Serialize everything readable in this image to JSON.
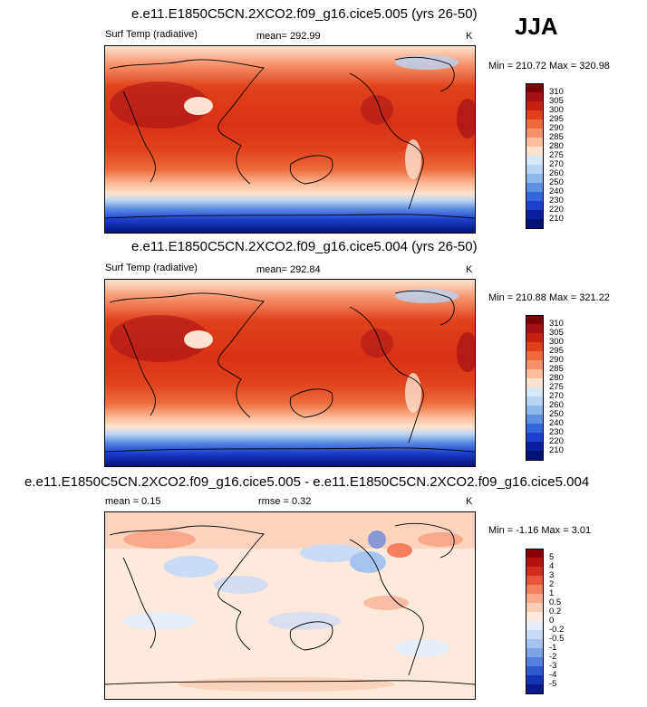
{
  "season_label": "JJA",
  "panels": [
    {
      "title": "e.e11.E1850C5CN.2XCO2.f09_g16.cice5.005 (yrs 26-50)",
      "variable_label": "Surf Temp (radiative)",
      "stat_text": "mean= 292.99",
      "units": "K",
      "minmax_text": "Min = 210.72 Max = 320.98",
      "colorbar": {
        "labels": [
          "310",
          "305",
          "300",
          "295",
          "290",
          "285",
          "280",
          "275",
          "270",
          "260",
          "250",
          "240",
          "230",
          "220",
          "210"
        ],
        "colors": [
          "#7a0403",
          "#a50f15",
          "#c8200e",
          "#e0401a",
          "#ee6a3a",
          "#f6926a",
          "#fbbd9a",
          "#fde3d0",
          "#d8e8f8",
          "#b8d3f2",
          "#8eb7ec",
          "#5f91e3",
          "#3366dc",
          "#1a3fcc",
          "#0a1f9e",
          "#031278"
        ]
      }
    },
    {
      "title": "e.e11.E1850C5CN.2XCO2.f09_g16.cice5.004 (yrs 26-50)",
      "variable_label": "Surf Temp (radiative)",
      "stat_text": "mean= 292.84",
      "units": "K",
      "minmax_text": "Min = 210.88 Max = 321.22",
      "colorbar": {
        "labels": [
          "310",
          "305",
          "300",
          "295",
          "290",
          "285",
          "280",
          "275",
          "270",
          "260",
          "250",
          "240",
          "230",
          "220",
          "210"
        ],
        "colors": [
          "#7a0403",
          "#a50f15",
          "#c8200e",
          "#e0401a",
          "#ee6a3a",
          "#f6926a",
          "#fbbd9a",
          "#fde3d0",
          "#d8e8f8",
          "#b8d3f2",
          "#8eb7ec",
          "#5f91e3",
          "#3366dc",
          "#1a3fcc",
          "#0a1f9e",
          "#031278"
        ]
      }
    },
    {
      "title": "e.e11.E1850C5CN.2XCO2.f09_g16.cice5.005 - e.e11.E1850C5CN.2XCO2.f09_g16.cice5.004",
      "stat_text": "mean =   0.15",
      "rmse_text": "rmse =   0.32",
      "units": "K",
      "minmax_text": "Min =  -1.16 Max =   3.01",
      "colorbar": {
        "labels": [
          "5",
          "4",
          "3",
          "2",
          "1",
          "0.5",
          "0.2",
          "0",
          "-0.2",
          "-0.5",
          "-1",
          "-2",
          "-3",
          "-4",
          "-5"
        ],
        "colors": [
          "#8a0000",
          "#b2140d",
          "#d22d1d",
          "#e8553a",
          "#f4805e",
          "#f8a98a",
          "#fbcdb4",
          "#fdeadc",
          "#e6eefa",
          "#c9daf5",
          "#a6c2ef",
          "#7ea4e8",
          "#5580dd",
          "#2f5acf",
          "#1533b5",
          "#0a1a8a"
        ]
      }
    }
  ],
  "chart_data": [
    {
      "type": "heatmap",
      "title": "e.e11.E1850C5CN.2XCO2.f09_g16.cice5.005 (yrs 26-50)",
      "subtitle": "Surf Temp (radiative)",
      "season": "JJA",
      "units": "K",
      "mean": 292.99,
      "min": 210.72,
      "max": 320.98,
      "color_levels": [
        210,
        220,
        230,
        240,
        250,
        260,
        270,
        275,
        280,
        285,
        290,
        295,
        300,
        305,
        310
      ],
      "legend": "right"
    },
    {
      "type": "heatmap",
      "title": "e.e11.E1850C5CN.2XCO2.f09_g16.cice5.004 (yrs 26-50)",
      "subtitle": "Surf Temp (radiative)",
      "season": "JJA",
      "units": "K",
      "mean": 292.84,
      "min": 210.88,
      "max": 321.22,
      "color_levels": [
        210,
        220,
        230,
        240,
        250,
        260,
        270,
        275,
        280,
        285,
        290,
        295,
        300,
        305,
        310
      ],
      "legend": "right"
    },
    {
      "type": "heatmap",
      "title": "e.e11.E1850C5CN.2XCO2.f09_g16.cice5.005 - e.e11.E1850C5CN.2XCO2.f09_g16.cice5.004",
      "season": "JJA",
      "units": "K",
      "mean": 0.15,
      "rmse": 0.32,
      "min": -1.16,
      "max": 3.01,
      "color_levels": [
        -5,
        -4,
        -3,
        -2,
        -1,
        -0.5,
        -0.2,
        0,
        0.2,
        0.5,
        1,
        2,
        3,
        4,
        5
      ],
      "legend": "right"
    }
  ]
}
